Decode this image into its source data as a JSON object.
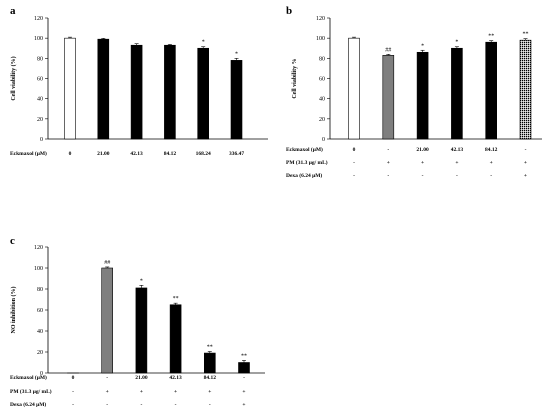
{
  "chart_data": [
    {
      "panel": "a",
      "type": "bar",
      "ylabel": "Cell viability (%)",
      "ylim": [
        0,
        120
      ],
      "yticks": [
        0,
        20,
        40,
        60,
        80,
        100,
        120
      ],
      "categories": [
        "0",
        "21.00",
        "42.13",
        "84.12",
        "168.24",
        "336.47"
      ],
      "values": [
        100,
        99,
        93,
        93,
        90,
        78
      ],
      "errors": [
        1,
        0.8,
        1.5,
        0.8,
        1.5,
        2
      ],
      "significance": [
        "",
        "",
        "",
        "",
        "*",
        "*"
      ],
      "fills": [
        "white",
        "black",
        "black",
        "black",
        "black",
        "black"
      ],
      "table": [
        {
          "label": "Eckmaxol (μM)",
          "cells": [
            "0",
            "21.00",
            "42.13",
            "84.12",
            "168.24",
            "336.47"
          ]
        }
      ]
    },
    {
      "panel": "b",
      "type": "bar",
      "ylabel": "Cell viability %",
      "ylim": [
        0,
        120
      ],
      "yticks": [
        0,
        20,
        40,
        60,
        80,
        100,
        120
      ],
      "categories": [
        "0",
        "-",
        "21.00",
        "42.13",
        "84.12",
        "-"
      ],
      "values": [
        100,
        83,
        86,
        90,
        96,
        98
      ],
      "errors": [
        1,
        1,
        2,
        1.5,
        1.5,
        1.5
      ],
      "significance": [
        "",
        "##",
        "*",
        "*",
        "**",
        "**"
      ],
      "fills": [
        "white",
        "gray",
        "black",
        "black",
        "black",
        "dotted"
      ],
      "table": [
        {
          "label": "Eckmaxol (μM)",
          "cells": [
            "0",
            "-",
            "21.00",
            "42.13",
            "84.12",
            "-"
          ]
        },
        {
          "label": "PM (31.3 μg/ mL)",
          "cells": [
            "-",
            "+",
            "+",
            "+",
            "+",
            "+"
          ]
        },
        {
          "label": "Dexa (6.24 μM)",
          "cells": [
            "-",
            "-",
            "-",
            "-",
            "-",
            "+"
          ]
        }
      ]
    },
    {
      "panel": "c",
      "type": "bar",
      "ylabel": "NO inhibition (%)",
      "ylim": [
        0,
        120
      ],
      "yticks": [
        0,
        20,
        40,
        60,
        80,
        100,
        120
      ],
      "categories": [
        "0",
        "-",
        "21.00",
        "42.13",
        "84.12",
        "-"
      ],
      "values": [
        0,
        100,
        81,
        65,
        19,
        10
      ],
      "errors": [
        0,
        1,
        2.5,
        1.5,
        1.5,
        2
      ],
      "significance": [
        "",
        "##",
        "*",
        "**",
        "**",
        "**"
      ],
      "fills": [
        "white",
        "gray",
        "black",
        "black",
        "black",
        "black"
      ],
      "table": [
        {
          "label": "Eckmaxol (μM)",
          "cells": [
            "0",
            "-",
            "21.00",
            "42.13",
            "84.12",
            "-"
          ]
        },
        {
          "label": "PM (31.3 μg/ mL)",
          "cells": [
            "-",
            "+",
            "+",
            "+",
            "+",
            "+"
          ]
        },
        {
          "label": "Dexa (6.24 μM)",
          "cells": [
            "-",
            "-",
            "-",
            "-",
            "-",
            "+"
          ]
        }
      ]
    }
  ]
}
